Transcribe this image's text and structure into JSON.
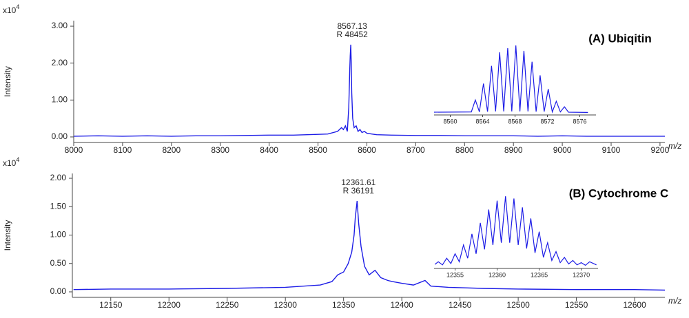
{
  "chart_data": [
    {
      "type": "line",
      "title": "(A) Ubiqitin",
      "y_label": "Intensity",
      "y_scale": "x10",
      "y_scale_exp": "4",
      "x_label": "m/z",
      "peak_label": [
        "8567.13",
        "R 48452"
      ],
      "color": "#1c1ce6",
      "x": [
        8000,
        8050,
        8100,
        8150,
        8200,
        8250,
        8300,
        8350,
        8400,
        8450,
        8500,
        8520,
        8540,
        8548,
        8552,
        8556,
        8560,
        8563,
        8565,
        8566,
        8567.13,
        8568,
        8569,
        8571,
        8574,
        8578,
        8582,
        8586,
        8590,
        8595,
        8600,
        8610,
        8620,
        8650,
        8700,
        8750,
        8800,
        8850,
        8900,
        8950,
        9000,
        9050,
        9100,
        9150,
        9210
      ],
      "values": [
        0.02,
        0.03,
        0.02,
        0.03,
        0.02,
        0.03,
        0.03,
        0.04,
        0.05,
        0.05,
        0.07,
        0.08,
        0.15,
        0.25,
        0.2,
        0.3,
        0.15,
        0.8,
        1.8,
        2.2,
        2.5,
        2.0,
        1.2,
        0.5,
        0.25,
        0.3,
        0.15,
        0.2,
        0.12,
        0.15,
        0.1,
        0.08,
        0.06,
        0.05,
        0.04,
        0.04,
        0.03,
        0.03,
        0.03,
        0.02,
        0.03,
        0.02,
        0.02,
        0.02,
        0.02
      ],
      "xlim": [
        8000,
        9210
      ],
      "ylim": [
        -0.15,
        3.15
      ],
      "xticks": [
        8000,
        8100,
        8200,
        8300,
        8400,
        8500,
        8600,
        8700,
        8800,
        8900,
        9000,
        9100,
        9200
      ],
      "yticks": [
        {
          "value": 0,
          "label": "0.00"
        },
        {
          "value": 1,
          "label": "1.00"
        },
        {
          "value": 2,
          "label": "2.00"
        },
        {
          "value": 3,
          "label": "3.00"
        }
      ],
      "inset": {
        "x": [
          8558,
          8562.6,
          8563.1,
          8563.6,
          8564.1,
          8564.6,
          8565.1,
          8565.6,
          8566.1,
          8566.6,
          8567.1,
          8567.6,
          8568.1,
          8568.6,
          8569.1,
          8569.6,
          8570.1,
          8570.6,
          8571.1,
          8571.6,
          8572.1,
          8572.6,
          8573.1,
          8573.6,
          8574.1,
          8574.6,
          8577
        ],
        "values": [
          0.05,
          0.06,
          0.5,
          0.06,
          1.1,
          0.07,
          1.75,
          0.08,
          2.25,
          0.08,
          2.4,
          0.08,
          2.5,
          0.08,
          2.3,
          0.08,
          1.9,
          0.07,
          1.4,
          0.07,
          0.9,
          0.06,
          0.45,
          0.06,
          0.25,
          0.05,
          0.04
        ],
        "xlim": [
          8558,
          8578
        ],
        "ylim": [
          0,
          2.6
        ],
        "xticks": [
          8560,
          8564,
          8568,
          8572,
          8576
        ]
      }
    },
    {
      "type": "line",
      "title": "(B) Cytochrome C",
      "y_label": "Intensity",
      "y_scale": "x10",
      "y_scale_exp": "4",
      "x_label": "m/z",
      "peak_label": [
        "12361.61",
        "R 36191"
      ],
      "color": "#1c1ce6",
      "x": [
        12118,
        12150,
        12200,
        12250,
        12300,
        12330,
        12340,
        12345,
        12350,
        12354,
        12357,
        12359,
        12360,
        12361.61,
        12363,
        12365,
        12368,
        12372,
        12377,
        12382,
        12388,
        12392,
        12400,
        12410,
        12420,
        12425,
        12440,
        12470,
        12500,
        12550,
        12600,
        12626
      ],
      "values": [
        0.04,
        0.05,
        0.05,
        0.06,
        0.08,
        0.12,
        0.18,
        0.3,
        0.35,
        0.5,
        0.7,
        1.0,
        1.3,
        1.6,
        1.2,
        0.8,
        0.45,
        0.3,
        0.38,
        0.25,
        0.2,
        0.18,
        0.15,
        0.12,
        0.2,
        0.1,
        0.08,
        0.06,
        0.05,
        0.04,
        0.04,
        0.03
      ],
      "xlim": [
        12117,
        12626
      ],
      "ylim": [
        -0.097,
        2.085
      ],
      "xticks": [
        12150,
        12200,
        12250,
        12300,
        12350,
        12400,
        12450,
        12500,
        12550,
        12600
      ],
      "yticks": [
        {
          "value": 0,
          "label": "0.00"
        },
        {
          "value": 0.5,
          "label": "0.50"
        },
        {
          "value": 1,
          "label": "1.00"
        },
        {
          "value": 1.5,
          "label": "1.50"
        },
        {
          "value": 2,
          "label": "2.00"
        }
      ],
      "inset": {
        "x": [
          12352.6,
          12353,
          12353.5,
          12354,
          12354.5,
          12355,
          12355.5,
          12356,
          12356.5,
          12357,
          12357.5,
          12358,
          12358.5,
          12359,
          12359.5,
          12360,
          12360.5,
          12361,
          12361.5,
          12362,
          12362.5,
          12363,
          12363.5,
          12364,
          12364.5,
          12365,
          12365.5,
          12366,
          12366.5,
          12367,
          12367.5,
          12368,
          12368.5,
          12369,
          12369.5,
          12370,
          12370.5,
          12371,
          12371.8
        ],
        "values": [
          0.06,
          0.12,
          0.05,
          0.2,
          0.08,
          0.3,
          0.12,
          0.5,
          0.2,
          0.75,
          0.3,
          1.0,
          0.4,
          1.3,
          0.5,
          1.5,
          0.55,
          1.6,
          0.55,
          1.55,
          0.5,
          1.35,
          0.42,
          1.1,
          0.32,
          0.8,
          0.22,
          0.55,
          0.15,
          0.35,
          0.1,
          0.22,
          0.07,
          0.15,
          0.05,
          0.1,
          0.04,
          0.12,
          0.05
        ],
        "xlim": [
          12352.5,
          12372
        ],
        "ylim": [
          0,
          1.65
        ],
        "xticks": [
          12355,
          12360,
          12365,
          12370
        ]
      }
    }
  ]
}
